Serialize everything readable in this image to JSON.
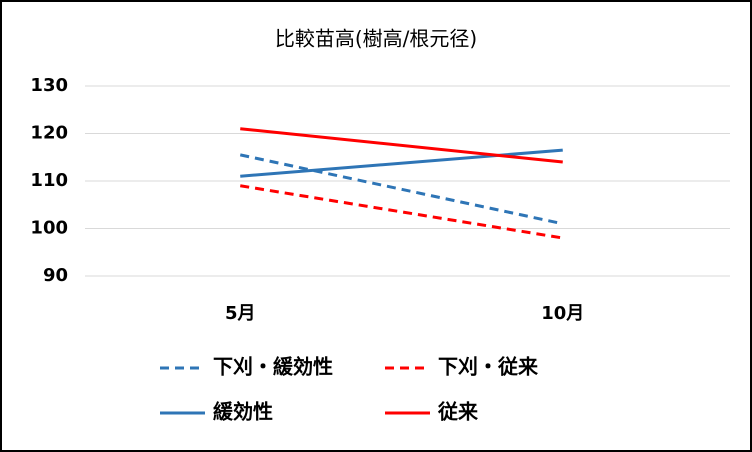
{
  "chart_data": {
    "type": "line",
    "title": "比較苗高(樹高/根元径)",
    "categories": [
      "5月",
      "10月"
    ],
    "series": [
      {
        "name": "下刈・緩効性",
        "color": "#2e75b6",
        "line_style": "dashed",
        "values": [
          115.5,
          101
        ]
      },
      {
        "name": "下刈・従来",
        "color": "#ff0000",
        "line_style": "dashed",
        "values": [
          109,
          98
        ]
      },
      {
        "name": "緩効性",
        "color": "#2e75b6",
        "line_style": "solid",
        "values": [
          111,
          116.5
        ]
      },
      {
        "name": "従来",
        "color": "#ff0000",
        "line_style": "solid",
        "values": [
          121,
          114
        ]
      }
    ],
    "ylim": [
      90,
      130
    ],
    "yticks": [
      90,
      100,
      110,
      120,
      130
    ],
    "grid": true
  }
}
